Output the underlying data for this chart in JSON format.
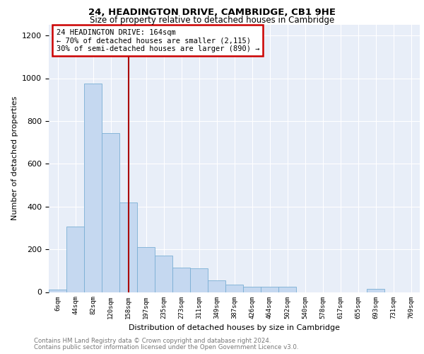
{
  "title": "24, HEADINGTON DRIVE, CAMBRIDGE, CB1 9HE",
  "subtitle": "Size of property relative to detached houses in Cambridge",
  "xlabel": "Distribution of detached houses by size in Cambridge",
  "ylabel": "Number of detached properties",
  "categories": [
    "6sqm",
    "44sqm",
    "82sqm",
    "120sqm",
    "158sqm",
    "197sqm",
    "235sqm",
    "273sqm",
    "311sqm",
    "349sqm",
    "387sqm",
    "426sqm",
    "464sqm",
    "502sqm",
    "540sqm",
    "578sqm",
    "617sqm",
    "655sqm",
    "693sqm",
    "731sqm",
    "769sqm"
  ],
  "values": [
    10,
    305,
    975,
    745,
    420,
    210,
    170,
    115,
    110,
    55,
    35,
    25,
    25,
    25,
    0,
    0,
    0,
    0,
    15,
    0,
    0
  ],
  "bar_color": "#c5d8f0",
  "bar_edge_color": "#7aafd4",
  "vline_color": "#aa0000",
  "vline_index": 4,
  "annotation_text": "24 HEADINGTON DRIVE: 164sqm\n← 70% of detached houses are smaller (2,115)\n30% of semi-detached houses are larger (890) →",
  "annotation_box_edge_color": "#cc0000",
  "ylim": [
    0,
    1250
  ],
  "yticks": [
    0,
    200,
    400,
    600,
    800,
    1000,
    1200
  ],
  "footnote1": "Contains HM Land Registry data © Crown copyright and database right 2024.",
  "footnote2": "Contains public sector information licensed under the Open Government Licence v3.0.",
  "plot_bg_color": "#e8eef8",
  "grid_color": "#ffffff"
}
